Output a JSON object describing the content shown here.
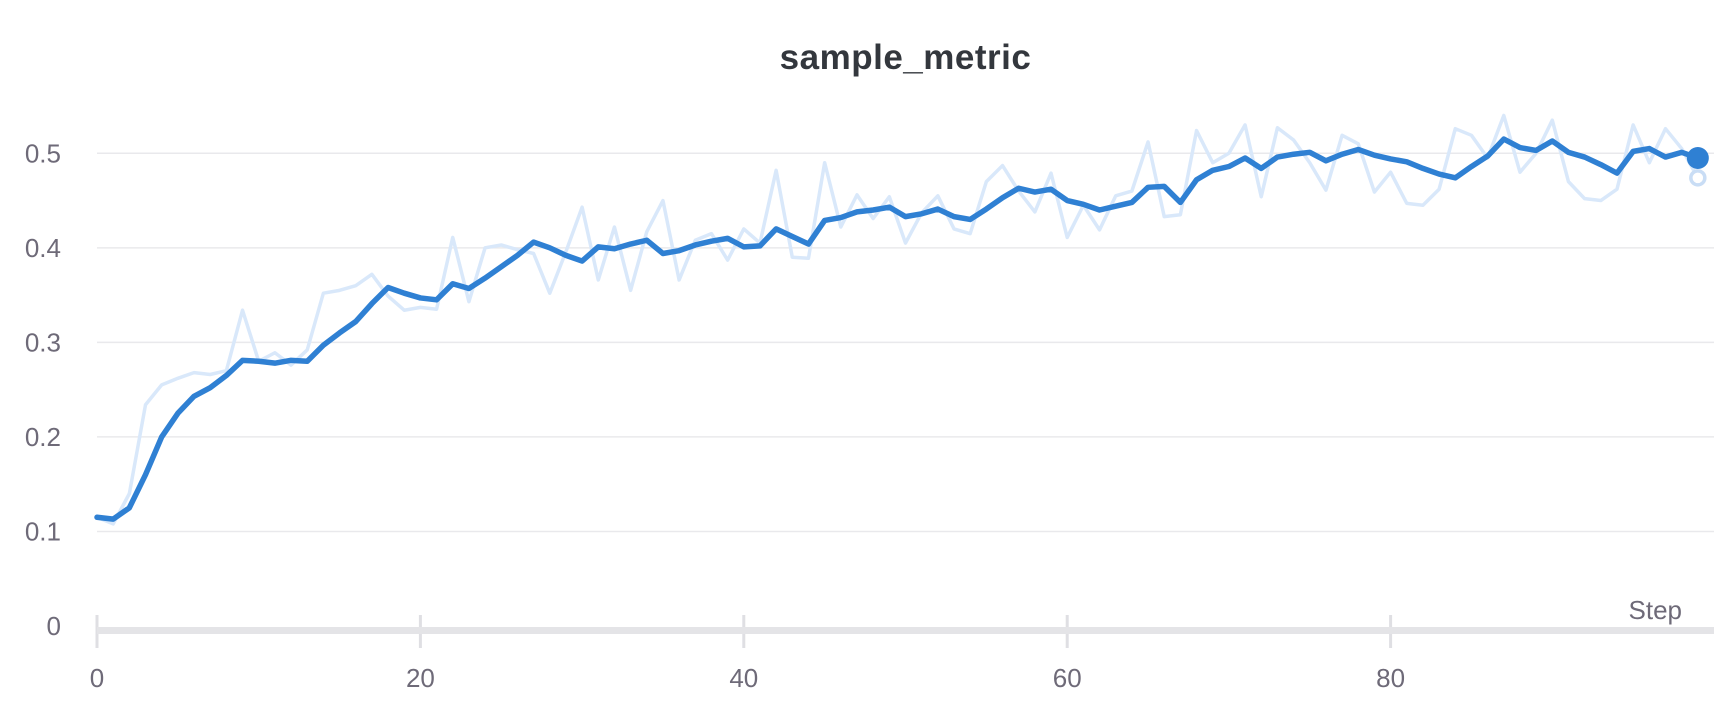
{
  "panel": {
    "title": "sample_metric"
  },
  "colors": {
    "title_text": "#33373d",
    "axis_label_text": "#6e6a78",
    "gridline": "#e9e9ec",
    "axis_baseline": "#e4e4e7",
    "tick_mark": "#dfdfe3",
    "smoothed_line": "#2f80d3",
    "raw_line": "#d9e8fa",
    "end_dot": "#2f80d3",
    "raw_end_ring": "#c9ddf5",
    "background": "#ffffff"
  },
  "chart_data": {
    "type": "line",
    "title": "sample_metric",
    "xlabel": "Step",
    "ylabel": "",
    "xlim": [
      0,
      100
    ],
    "ylim": [
      0,
      0.55
    ],
    "x_ticks": [
      0,
      20,
      40,
      60,
      80
    ],
    "x_tick_labels": [
      "0",
      "20",
      "40",
      "60",
      "80"
    ],
    "y_ticks": [
      0,
      0.1,
      0.2,
      0.3,
      0.4,
      0.5
    ],
    "y_tick_labels": [
      "0",
      "0.1",
      "0.2",
      "0.3",
      "0.4",
      "0.5"
    ],
    "grid": "horizontal",
    "legend": "none",
    "x": [
      0,
      1,
      2,
      3,
      4,
      5,
      6,
      7,
      8,
      9,
      10,
      11,
      12,
      13,
      14,
      15,
      16,
      17,
      18,
      19,
      20,
      21,
      22,
      23,
      24,
      25,
      26,
      27,
      28,
      29,
      30,
      31,
      32,
      33,
      34,
      35,
      36,
      37,
      38,
      39,
      40,
      41,
      42,
      43,
      44,
      45,
      46,
      47,
      48,
      49,
      50,
      51,
      52,
      53,
      54,
      55,
      56,
      57,
      58,
      59,
      60,
      61,
      62,
      63,
      64,
      65,
      66,
      67,
      68,
      69,
      70,
      71,
      72,
      73,
      74,
      75,
      76,
      77,
      78,
      79,
      80,
      81,
      82,
      83,
      84,
      85,
      86,
      87,
      88,
      89,
      90,
      91,
      92,
      93,
      94,
      95,
      96,
      97,
      98,
      99
    ],
    "series": [
      {
        "name": "raw",
        "color": "#d9e8fa",
        "line_width": 3.5,
        "end_marker": "ring",
        "values": [
          0.115,
          0.108,
          0.14,
          0.234,
          0.255,
          0.262,
          0.268,
          0.266,
          0.27,
          0.334,
          0.28,
          0.289,
          0.276,
          0.292,
          0.352,
          0.355,
          0.36,
          0.372,
          0.349,
          0.334,
          0.337,
          0.335,
          0.411,
          0.343,
          0.4,
          0.403,
          0.398,
          0.394,
          0.352,
          0.396,
          0.443,
          0.366,
          0.422,
          0.355,
          0.417,
          0.45,
          0.366,
          0.408,
          0.415,
          0.387,
          0.42,
          0.405,
          0.482,
          0.39,
          0.389,
          0.49,
          0.422,
          0.456,
          0.431,
          0.454,
          0.405,
          0.437,
          0.455,
          0.42,
          0.415,
          0.47,
          0.487,
          0.46,
          0.438,
          0.479,
          0.411,
          0.445,
          0.419,
          0.455,
          0.46,
          0.512,
          0.433,
          0.435,
          0.524,
          0.49,
          0.5,
          0.53,
          0.454,
          0.527,
          0.514,
          0.49,
          0.461,
          0.519,
          0.51,
          0.459,
          0.48,
          0.447,
          0.445,
          0.462,
          0.526,
          0.519,
          0.495,
          0.54,
          0.48,
          0.5,
          0.535,
          0.47,
          0.452,
          0.45,
          0.462,
          0.53,
          0.49,
          0.526,
          0.505,
          0.474
        ]
      },
      {
        "name": "smoothed",
        "color": "#2f80d3",
        "line_width": 5.5,
        "end_marker": "dot",
        "values": [
          0.115,
          0.113,
          0.125,
          0.16,
          0.2,
          0.225,
          0.243,
          0.252,
          0.265,
          0.281,
          0.28,
          0.278,
          0.281,
          0.28,
          0.297,
          0.31,
          0.322,
          0.341,
          0.358,
          0.352,
          0.347,
          0.345,
          0.362,
          0.357,
          0.368,
          0.38,
          0.392,
          0.406,
          0.4,
          0.392,
          0.386,
          0.401,
          0.399,
          0.404,
          0.408,
          0.394,
          0.397,
          0.403,
          0.407,
          0.41,
          0.401,
          0.402,
          0.42,
          0.412,
          0.404,
          0.429,
          0.432,
          0.438,
          0.44,
          0.443,
          0.433,
          0.436,
          0.441,
          0.433,
          0.43,
          0.441,
          0.453,
          0.463,
          0.459,
          0.462,
          0.45,
          0.446,
          0.44,
          0.444,
          0.448,
          0.464,
          0.465,
          0.448,
          0.472,
          0.482,
          0.486,
          0.495,
          0.484,
          0.496,
          0.499,
          0.501,
          0.492,
          0.499,
          0.504,
          0.498,
          0.494,
          0.491,
          0.484,
          0.478,
          0.474,
          0.486,
          0.497,
          0.515,
          0.506,
          0.503,
          0.513,
          0.501,
          0.496,
          0.488,
          0.479,
          0.502,
          0.505,
          0.496,
          0.501,
          0.495
        ]
      }
    ],
    "final_values": {
      "smoothed": 0.495,
      "raw": 0.474
    }
  }
}
